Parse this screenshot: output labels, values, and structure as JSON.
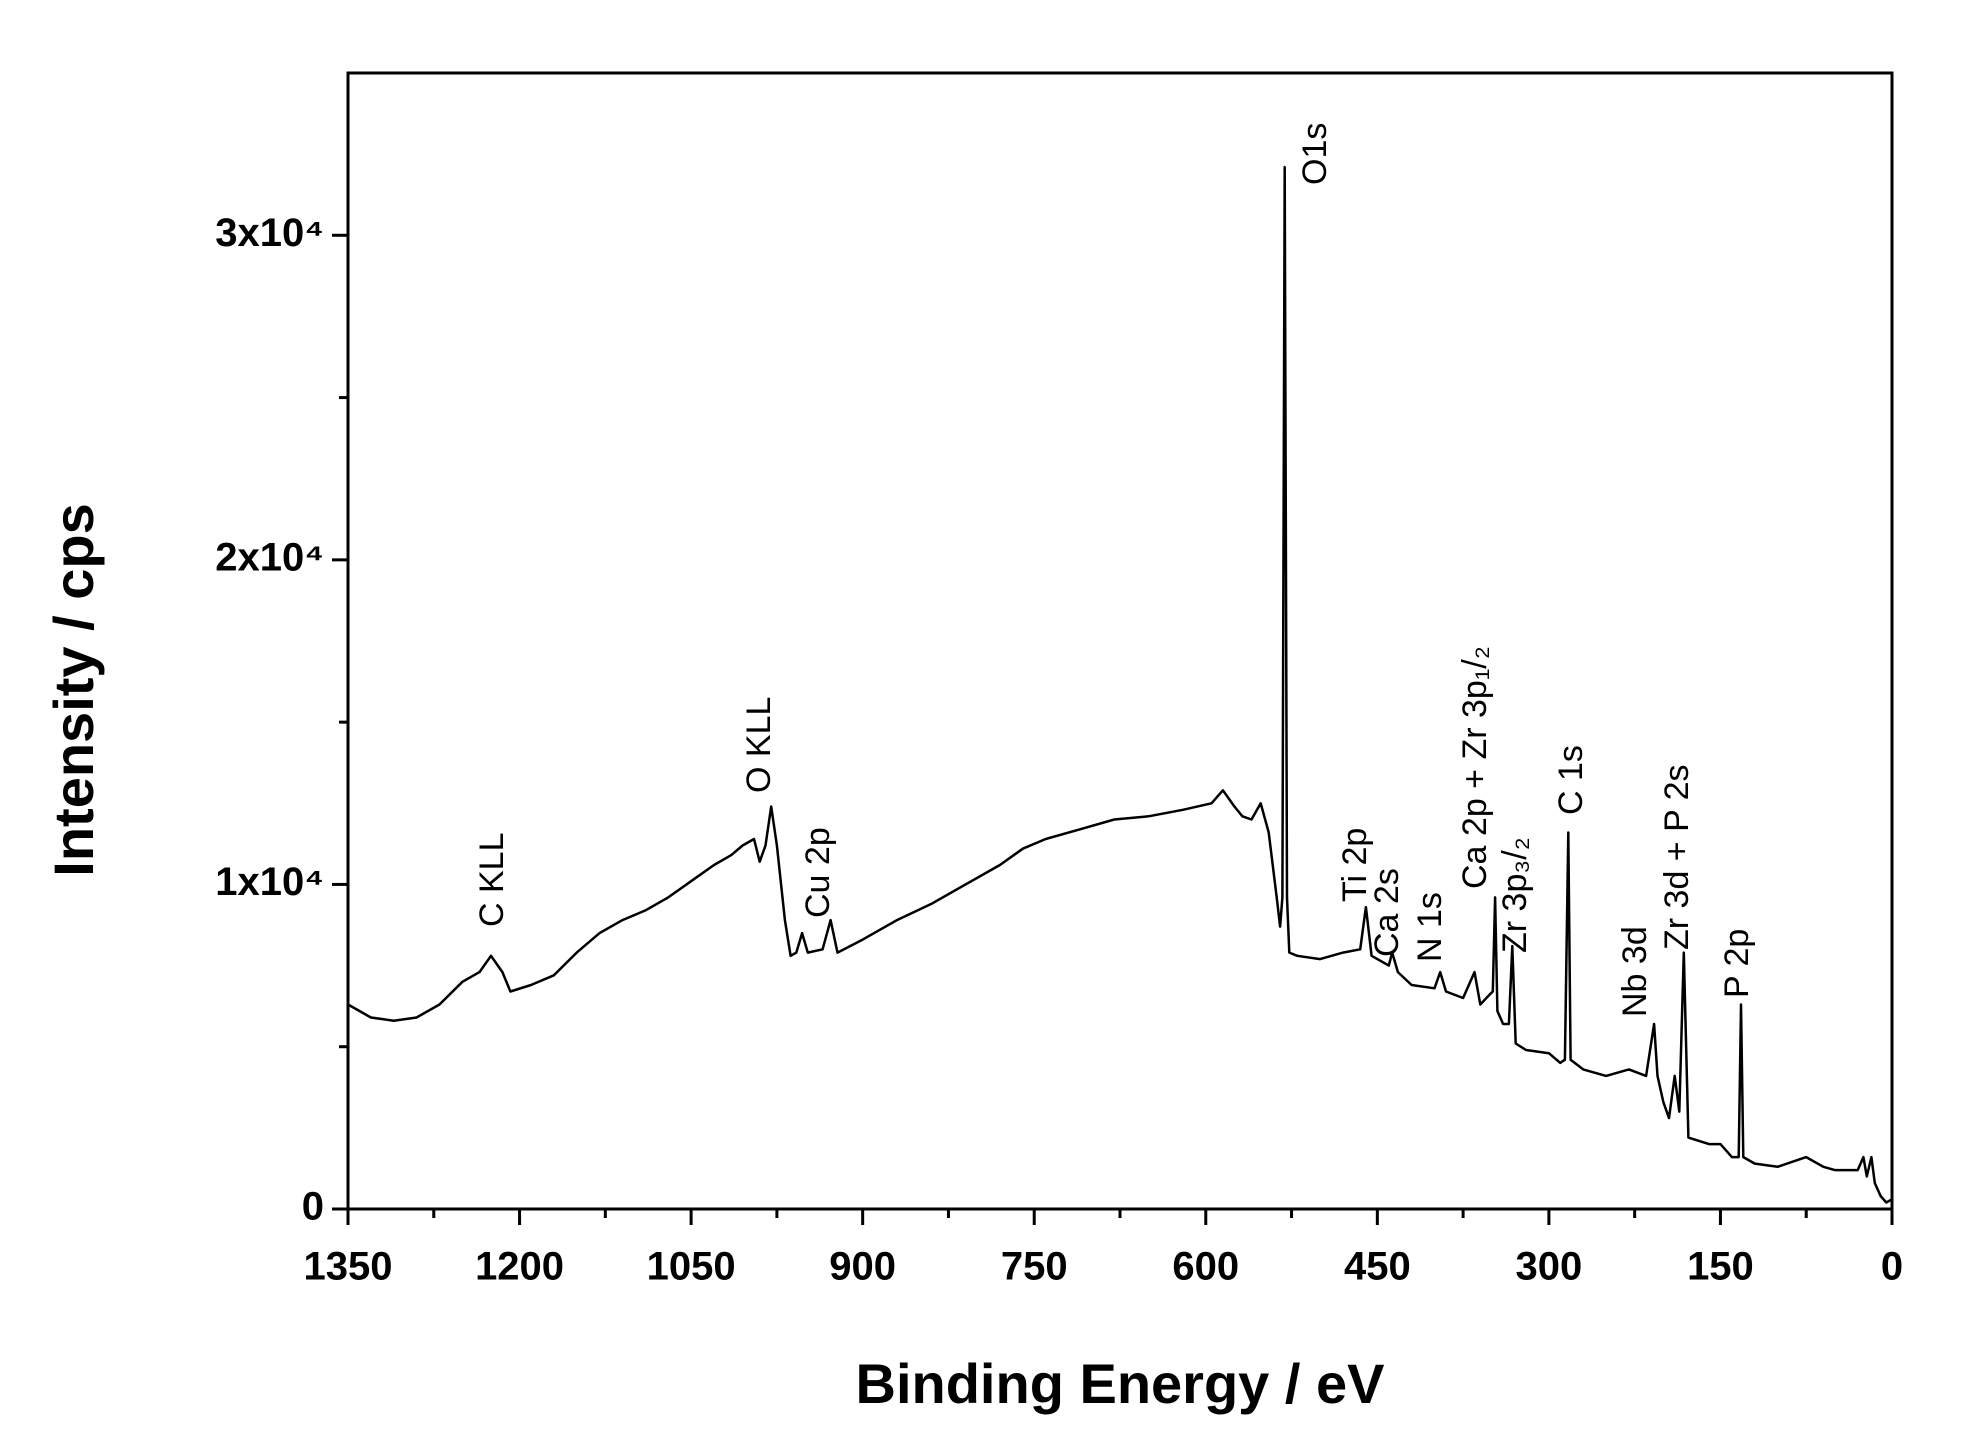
{
  "chart_data": {
    "type": "line",
    "xlabel": "Binding Energy / eV",
    "ylabel": "Intensity / cps",
    "xlim": [
      1350,
      0
    ],
    "ylim": [
      0,
      35000
    ],
    "xticks": [
      1350,
      1200,
      1050,
      900,
      750,
      600,
      450,
      300,
      150,
      0
    ],
    "xminor_ticks": [
      1275,
      1125,
      975,
      825,
      675,
      525,
      375,
      225,
      75
    ],
    "yticks": [
      {
        "value": 0,
        "label": "0"
      },
      {
        "value": 10000,
        "label": "1x10⁴"
      },
      {
        "value": 20000,
        "label": "2x10⁴"
      },
      {
        "value": 30000,
        "label": "3x10⁴"
      }
    ],
    "yminor_ticks": [
      5000,
      15000,
      25000
    ],
    "color": "#000000",
    "x": [
      1350,
      1330,
      1310,
      1290,
      1270,
      1250,
      1235,
      1225,
      1215,
      1208,
      1190,
      1170,
      1150,
      1130,
      1110,
      1090,
      1070,
      1050,
      1030,
      1015,
      1005,
      995,
      990,
      985,
      980,
      975,
      968,
      963,
      958,
      953,
      948,
      935,
      928,
      922,
      900,
      870,
      840,
      810,
      780,
      760,
      740,
      710,
      680,
      650,
      620,
      595,
      585,
      575,
      568,
      560,
      552,
      545,
      538,
      535,
      533,
      531,
      529,
      527,
      520,
      500,
      480,
      465,
      460,
      455,
      440,
      437,
      432,
      420,
      400,
      395,
      390,
      375,
      365,
      360,
      352,
      349,
      347,
      345,
      340,
      335,
      332,
      329,
      320,
      300,
      290,
      286,
      283,
      281,
      270,
      250,
      230,
      215,
      208,
      205,
      200,
      195,
      190,
      186,
      182,
      178,
      160,
      150,
      140,
      134,
      132,
      130,
      120,
      100,
      75,
      60,
      50,
      30,
      25,
      22,
      18,
      15,
      10,
      5,
      0
    ],
    "values": [
      6300,
      5900,
      5800,
      5900,
      6300,
      7000,
      7300,
      7800,
      7300,
      6700,
      6900,
      7200,
      7900,
      8500,
      8900,
      9200,
      9600,
      10100,
      10600,
      10900,
      11200,
      11400,
      10700,
      11200,
      12400,
      11200,
      8900,
      7800,
      7900,
      8500,
      7900,
      8000,
      8900,
      7900,
      8300,
      8900,
      9400,
      10000,
      10600,
      11100,
      11400,
      11700,
      12000,
      12100,
      12300,
      12500,
      12900,
      12400,
      12100,
      12000,
      12500,
      11600,
      9600,
      8700,
      9600,
      32100,
      9600,
      7900,
      7800,
      7700,
      7900,
      8000,
      9300,
      7800,
      7500,
      7900,
      7300,
      6900,
      6800,
      7300,
      6700,
      6500,
      7300,
      6300,
      6600,
      6700,
      9600,
      6100,
      5700,
      5700,
      8100,
      5100,
      4900,
      4800,
      4500,
      4600,
      11600,
      4600,
      4300,
      4100,
      4300,
      4100,
      5700,
      4100,
      3300,
      2800,
      4100,
      3000,
      7900,
      2200,
      2000,
      2000,
      1600,
      1600,
      6300,
      1600,
      1400,
      1300,
      1600,
      1300,
      1200,
      1200,
      1600,
      1000,
      1600,
      800,
      400,
      200,
      300
    ],
    "annotations": [
      "C KLL",
      "O KLL",
      "Cu 2p",
      "O1s",
      "Ti 2p",
      "Ca 2s",
      "N 1s",
      "Ca 2p + Zr 3p₁/₂",
      "Zr 3p₃/₂",
      "C 1s",
      "Nb 3d",
      "Zr 3d + P 2s",
      "P 2p"
    ]
  }
}
